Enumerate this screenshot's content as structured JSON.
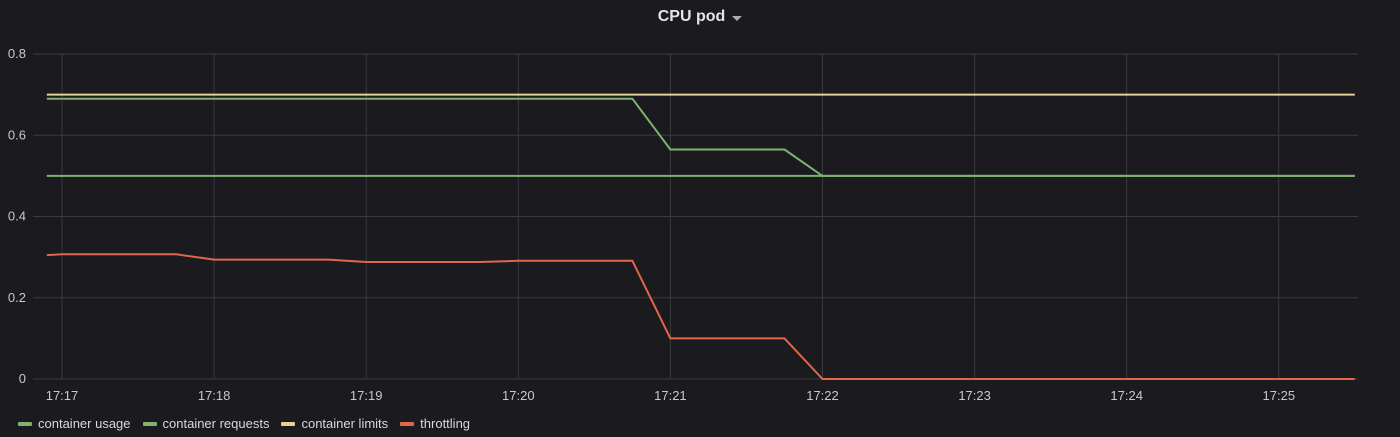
{
  "panel": {
    "title": "CPU pod"
  },
  "chart_data": {
    "type": "line",
    "title": "CPU pod",
    "xlabel": "",
    "ylabel": "",
    "x_ticks": [
      "17:17",
      "17:18",
      "17:19",
      "17:20",
      "17:21",
      "17:22",
      "17:23",
      "17:24",
      "17:25"
    ],
    "x_range": [
      "17:16.9",
      "17:25.5"
    ],
    "y_ticks": [
      "0",
      "0.2",
      "0.4",
      "0.6",
      "0.8"
    ],
    "ylim": [
      0,
      0.8
    ],
    "grid": true,
    "legend": "bottom-left",
    "series": [
      {
        "name": "container usage",
        "color": "#7eb26d",
        "points": [
          [
            "17:16.9",
            0.69
          ],
          [
            "17:20.75",
            0.69
          ],
          [
            "17:21.0",
            0.565
          ],
          [
            "17:21.75",
            0.565
          ],
          [
            "17:22.0",
            0.5
          ],
          [
            "17:25.5",
            0.5
          ]
        ]
      },
      {
        "name": "container requests",
        "color": "#7eb26d",
        "points": [
          [
            "17:16.9",
            0.5
          ],
          [
            "17:25.5",
            0.5
          ]
        ]
      },
      {
        "name": "container limits",
        "color": "#e5d19a",
        "points": [
          [
            "17:16.9",
            0.7
          ],
          [
            "17:25.5",
            0.7
          ]
        ]
      },
      {
        "name": "throttling",
        "color": "#e0674a",
        "points": [
          [
            "17:16.9",
            0.305
          ],
          [
            "17:17.0",
            0.307
          ],
          [
            "17:17.75",
            0.307
          ],
          [
            "17:18.0",
            0.294
          ],
          [
            "17:18.75",
            0.294
          ],
          [
            "17:19.0",
            0.288
          ],
          [
            "17:19.75",
            0.288
          ],
          [
            "17:20.0",
            0.291
          ],
          [
            "17:20.75",
            0.291
          ],
          [
            "17:21.0",
            0.1
          ],
          [
            "17:21.75",
            0.1
          ],
          [
            "17:22.0",
            0.0
          ],
          [
            "17:25.5",
            0.0
          ]
        ]
      }
    ]
  }
}
